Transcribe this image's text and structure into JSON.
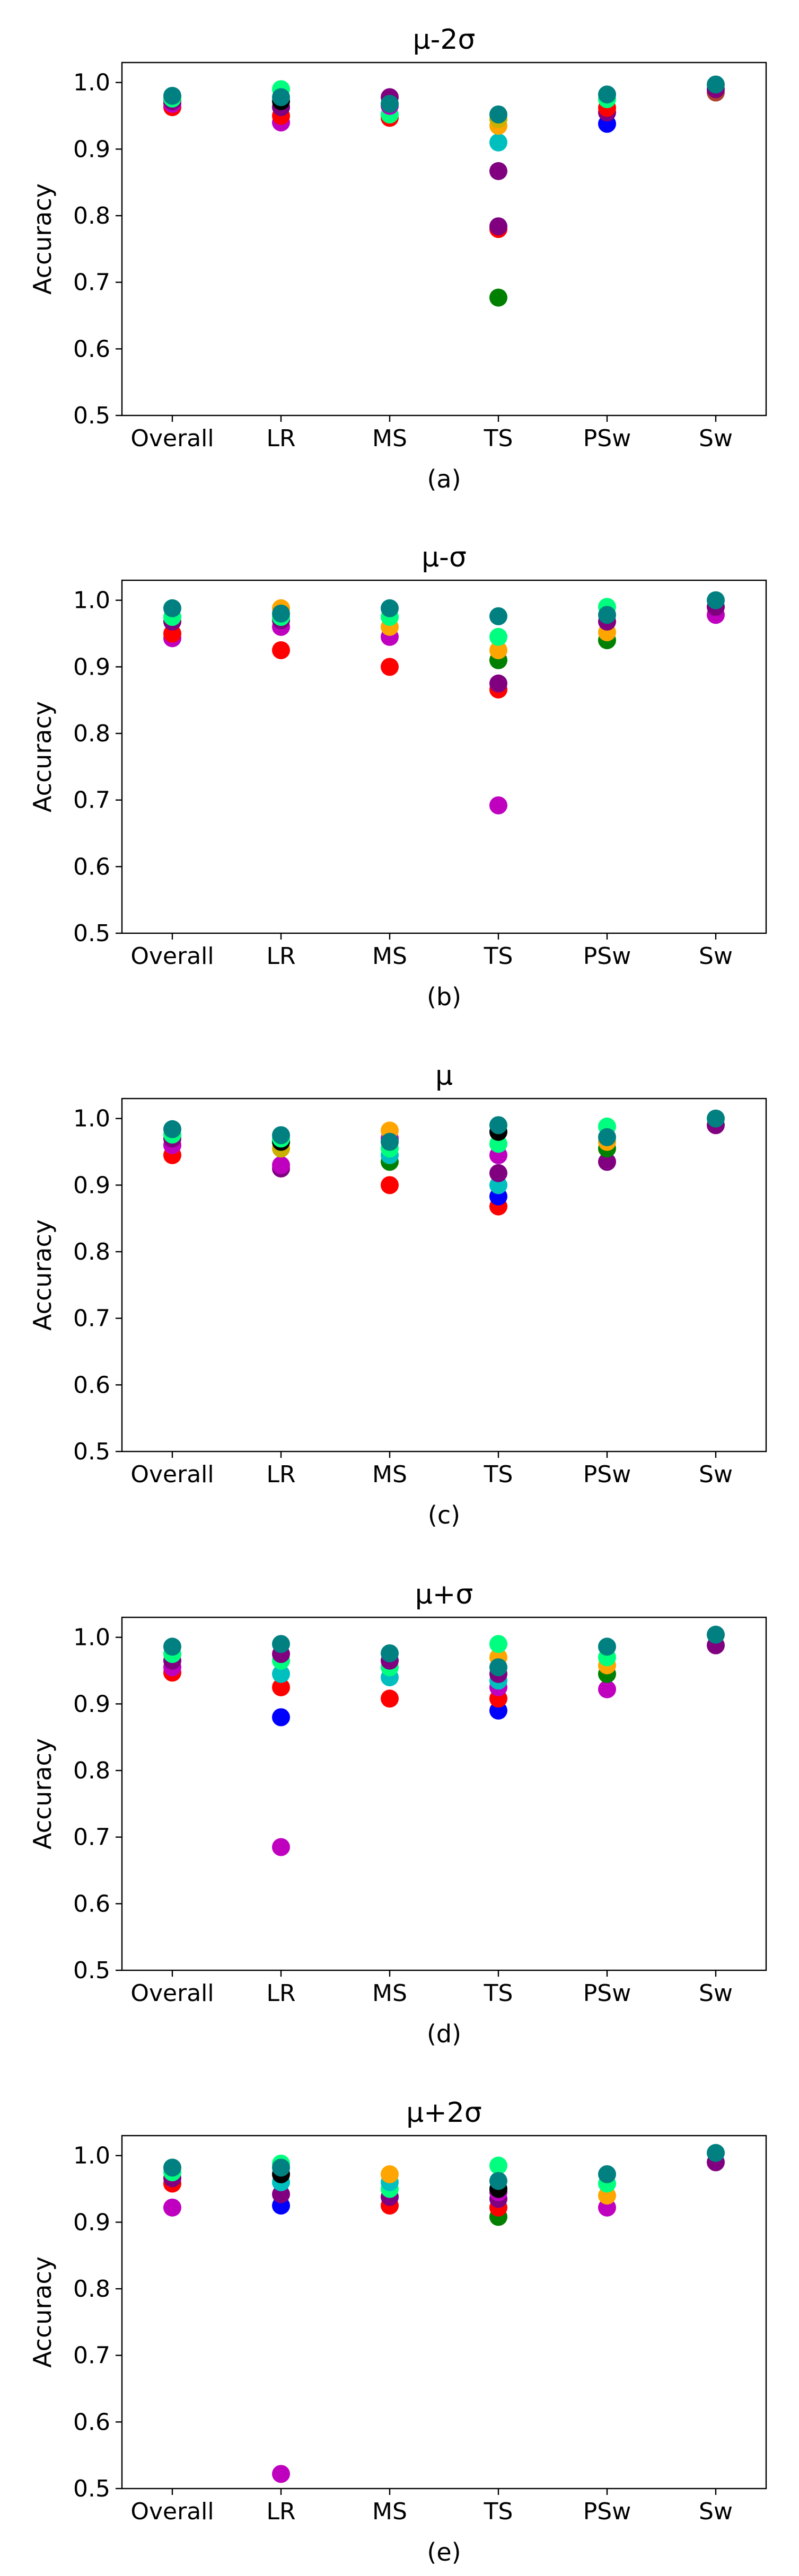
{
  "figure": {
    "colors": {
      "red": "#ff0000",
      "green": "#008000",
      "blue": "#0000ff",
      "cyan": "#00bfbf",
      "magenta": "#bf00bf",
      "purple": "#800080",
      "orange": "#ffa500",
      "gold": "#ccb000",
      "spring": "#00ff7f",
      "black": "#000000",
      "teal": "#008080",
      "brown": "#b04030"
    }
  },
  "chart_data": [
    {
      "type": "scatter",
      "title": "μ-2σ",
      "caption": "(a)",
      "xlabel": "",
      "ylabel": "Accuracy",
      "categories": [
        "Overall",
        "LR",
        "MS",
        "TS",
        "PSw",
        "Sw"
      ],
      "ylim": [
        0.5,
        1.03
      ],
      "yticks": [
        "0.5",
        "0.6",
        "0.7",
        "0.8",
        "0.9",
        "1.0"
      ],
      "grid": false,
      "points": [
        {
          "category": "Overall",
          "y": 0.963,
          "color": "red"
        },
        {
          "category": "Overall",
          "y": 0.968,
          "color": "magenta"
        },
        {
          "category": "Overall",
          "y": 0.972,
          "color": "purple"
        },
        {
          "category": "Overall",
          "y": 0.976,
          "color": "spring"
        },
        {
          "category": "Overall",
          "y": 0.98,
          "color": "teal"
        },
        {
          "category": "LR",
          "y": 0.94,
          "color": "magenta"
        },
        {
          "category": "LR",
          "y": 0.95,
          "color": "red"
        },
        {
          "category": "LR",
          "y": 0.963,
          "color": "purple"
        },
        {
          "category": "LR",
          "y": 0.972,
          "color": "black"
        },
        {
          "category": "LR",
          "y": 0.99,
          "color": "spring"
        },
        {
          "category": "LR",
          "y": 0.978,
          "color": "teal"
        },
        {
          "category": "MS",
          "y": 0.947,
          "color": "red"
        },
        {
          "category": "MS",
          "y": 0.952,
          "color": "spring"
        },
        {
          "category": "MS",
          "y": 0.965,
          "color": "magenta"
        },
        {
          "category": "MS",
          "y": 0.978,
          "color": "purple"
        },
        {
          "category": "MS",
          "y": 0.968,
          "color": "teal"
        },
        {
          "category": "TS",
          "y": 0.677,
          "color": "green"
        },
        {
          "category": "TS",
          "y": 0.78,
          "color": "red"
        },
        {
          "category": "TS",
          "y": 0.784,
          "color": "purple"
        },
        {
          "category": "TS",
          "y": 0.867,
          "color": "purple"
        },
        {
          "category": "TS",
          "y": 0.91,
          "color": "cyan"
        },
        {
          "category": "TS",
          "y": 0.935,
          "color": "orange"
        },
        {
          "category": "TS",
          "y": 0.945,
          "color": "gold"
        },
        {
          "category": "TS",
          "y": 0.952,
          "color": "teal"
        },
        {
          "category": "PSw",
          "y": 0.938,
          "color": "blue"
        },
        {
          "category": "PSw",
          "y": 0.955,
          "color": "purple"
        },
        {
          "category": "PSw",
          "y": 0.962,
          "color": "red"
        },
        {
          "category": "PSw",
          "y": 0.975,
          "color": "spring"
        },
        {
          "category": "PSw",
          "y": 0.982,
          "color": "teal"
        },
        {
          "category": "Sw",
          "y": 0.985,
          "color": "brown"
        },
        {
          "category": "Sw",
          "y": 0.99,
          "color": "purple"
        },
        {
          "category": "Sw",
          "y": 0.997,
          "color": "teal"
        }
      ]
    },
    {
      "type": "scatter",
      "title": "μ-σ",
      "caption": "(b)",
      "xlabel": "",
      "ylabel": "Accuracy",
      "categories": [
        "Overall",
        "LR",
        "MS",
        "TS",
        "PSw",
        "Sw"
      ],
      "ylim": [
        0.5,
        1.03
      ],
      "yticks": [
        "0.5",
        "0.6",
        "0.7",
        "0.8",
        "0.9",
        "1.0"
      ],
      "grid": false,
      "points": [
        {
          "category": "Overall",
          "y": 0.943,
          "color": "magenta"
        },
        {
          "category": "Overall",
          "y": 0.95,
          "color": "red"
        },
        {
          "category": "Overall",
          "y": 0.968,
          "color": "purple"
        },
        {
          "category": "Overall",
          "y": 0.975,
          "color": "spring"
        },
        {
          "category": "Overall",
          "y": 0.988,
          "color": "teal"
        },
        {
          "category": "LR",
          "y": 0.925,
          "color": "red"
        },
        {
          "category": "LR",
          "y": 0.96,
          "color": "magenta"
        },
        {
          "category": "LR",
          "y": 0.97,
          "color": "purple"
        },
        {
          "category": "LR",
          "y": 0.988,
          "color": "orange"
        },
        {
          "category": "LR",
          "y": 0.975,
          "color": "spring"
        },
        {
          "category": "LR",
          "y": 0.98,
          "color": "teal"
        },
        {
          "category": "MS",
          "y": 0.9,
          "color": "red"
        },
        {
          "category": "MS",
          "y": 0.945,
          "color": "magenta"
        },
        {
          "category": "MS",
          "y": 0.96,
          "color": "orange"
        },
        {
          "category": "MS",
          "y": 0.975,
          "color": "spring"
        },
        {
          "category": "MS",
          "y": 0.988,
          "color": "teal"
        },
        {
          "category": "TS",
          "y": 0.692,
          "color": "magenta"
        },
        {
          "category": "TS",
          "y": 0.866,
          "color": "red"
        },
        {
          "category": "TS",
          "y": 0.875,
          "color": "purple"
        },
        {
          "category": "TS",
          "y": 0.91,
          "color": "green"
        },
        {
          "category": "TS",
          "y": 0.925,
          "color": "orange"
        },
        {
          "category": "TS",
          "y": 0.945,
          "color": "spring"
        },
        {
          "category": "TS",
          "y": 0.976,
          "color": "teal"
        },
        {
          "category": "PSw",
          "y": 0.94,
          "color": "green"
        },
        {
          "category": "PSw",
          "y": 0.952,
          "color": "orange"
        },
        {
          "category": "PSw",
          "y": 0.968,
          "color": "purple"
        },
        {
          "category": "PSw",
          "y": 0.99,
          "color": "spring"
        },
        {
          "category": "PSw",
          "y": 0.978,
          "color": "teal"
        },
        {
          "category": "Sw",
          "y": 0.978,
          "color": "magenta"
        },
        {
          "category": "Sw",
          "y": 0.99,
          "color": "purple"
        },
        {
          "category": "Sw",
          "y": 1.0,
          "color": "teal"
        }
      ]
    },
    {
      "type": "scatter",
      "title": "μ",
      "caption": "(c)",
      "xlabel": "",
      "ylabel": "Accuracy",
      "categories": [
        "Overall",
        "LR",
        "MS",
        "TS",
        "PSw",
        "Sw"
      ],
      "ylim": [
        0.5,
        1.03
      ],
      "yticks": [
        "0.5",
        "0.6",
        "0.7",
        "0.8",
        "0.9",
        "1.0"
      ],
      "grid": false,
      "points": [
        {
          "category": "Overall",
          "y": 0.945,
          "color": "red"
        },
        {
          "category": "Overall",
          "y": 0.96,
          "color": "magenta"
        },
        {
          "category": "Overall",
          "y": 0.97,
          "color": "purple"
        },
        {
          "category": "Overall",
          "y": 0.976,
          "color": "spring"
        },
        {
          "category": "Overall",
          "y": 0.984,
          "color": "teal"
        },
        {
          "category": "LR",
          "y": 0.925,
          "color": "purple"
        },
        {
          "category": "LR",
          "y": 0.93,
          "color": "magenta"
        },
        {
          "category": "LR",
          "y": 0.955,
          "color": "gold"
        },
        {
          "category": "LR",
          "y": 0.965,
          "color": "black"
        },
        {
          "category": "LR",
          "y": 0.97,
          "color": "spring"
        },
        {
          "category": "LR",
          "y": 0.975,
          "color": "teal"
        },
        {
          "category": "MS",
          "y": 0.9,
          "color": "red"
        },
        {
          "category": "MS",
          "y": 0.935,
          "color": "green"
        },
        {
          "category": "MS",
          "y": 0.945,
          "color": "cyan"
        },
        {
          "category": "MS",
          "y": 0.955,
          "color": "spring"
        },
        {
          "category": "MS",
          "y": 0.97,
          "color": "magenta"
        },
        {
          "category": "MS",
          "y": 0.982,
          "color": "orange"
        },
        {
          "category": "MS",
          "y": 0.965,
          "color": "teal"
        },
        {
          "category": "TS",
          "y": 0.868,
          "color": "red"
        },
        {
          "category": "TS",
          "y": 0.883,
          "color": "blue"
        },
        {
          "category": "TS",
          "y": 0.9,
          "color": "cyan"
        },
        {
          "category": "TS",
          "y": 0.918,
          "color": "purple"
        },
        {
          "category": "TS",
          "y": 0.945,
          "color": "magenta"
        },
        {
          "category": "TS",
          "y": 0.962,
          "color": "spring"
        },
        {
          "category": "TS",
          "y": 0.98,
          "color": "black"
        },
        {
          "category": "TS",
          "y": 0.99,
          "color": "teal"
        },
        {
          "category": "PSw",
          "y": 0.935,
          "color": "purple"
        },
        {
          "category": "PSw",
          "y": 0.955,
          "color": "green"
        },
        {
          "category": "PSw",
          "y": 0.965,
          "color": "orange"
        },
        {
          "category": "PSw",
          "y": 0.988,
          "color": "spring"
        },
        {
          "category": "PSw",
          "y": 0.972,
          "color": "teal"
        },
        {
          "category": "Sw",
          "y": 0.99,
          "color": "purple"
        },
        {
          "category": "Sw",
          "y": 1.0,
          "color": "teal"
        }
      ]
    },
    {
      "type": "scatter",
      "title": "μ+σ",
      "caption": "(d)",
      "xlabel": "",
      "ylabel": "Accuracy",
      "categories": [
        "Overall",
        "LR",
        "MS",
        "TS",
        "PSw",
        "Sw"
      ],
      "ylim": [
        0.5,
        1.03
      ],
      "yticks": [
        "0.5",
        "0.6",
        "0.7",
        "0.8",
        "0.9",
        "1.0"
      ],
      "grid": false,
      "points": [
        {
          "category": "Overall",
          "y": 0.947,
          "color": "red"
        },
        {
          "category": "Overall",
          "y": 0.955,
          "color": "magenta"
        },
        {
          "category": "Overall",
          "y": 0.965,
          "color": "purple"
        },
        {
          "category": "Overall",
          "y": 0.975,
          "color": "spring"
        },
        {
          "category": "Overall",
          "y": 0.986,
          "color": "teal"
        },
        {
          "category": "LR",
          "y": 0.685,
          "color": "magenta"
        },
        {
          "category": "LR",
          "y": 0.88,
          "color": "blue"
        },
        {
          "category": "LR",
          "y": 0.925,
          "color": "red"
        },
        {
          "category": "LR",
          "y": 0.945,
          "color": "cyan"
        },
        {
          "category": "LR",
          "y": 0.965,
          "color": "spring"
        },
        {
          "category": "LR",
          "y": 0.975,
          "color": "purple"
        },
        {
          "category": "LR",
          "y": 0.99,
          "color": "teal"
        },
        {
          "category": "MS",
          "y": 0.908,
          "color": "red"
        },
        {
          "category": "MS",
          "y": 0.94,
          "color": "cyan"
        },
        {
          "category": "MS",
          "y": 0.955,
          "color": "spring"
        },
        {
          "category": "MS",
          "y": 0.965,
          "color": "purple"
        },
        {
          "category": "MS",
          "y": 0.976,
          "color": "teal"
        },
        {
          "category": "TS",
          "y": 0.89,
          "color": "blue"
        },
        {
          "category": "TS",
          "y": 0.908,
          "color": "red"
        },
        {
          "category": "TS",
          "y": 0.925,
          "color": "magenta"
        },
        {
          "category": "TS",
          "y": 0.935,
          "color": "cyan"
        },
        {
          "category": "TS",
          "y": 0.945,
          "color": "purple"
        },
        {
          "category": "TS",
          "y": 0.97,
          "color": "orange"
        },
        {
          "category": "TS",
          "y": 0.99,
          "color": "spring"
        },
        {
          "category": "TS",
          "y": 0.955,
          "color": "teal"
        },
        {
          "category": "PSw",
          "y": 0.922,
          "color": "magenta"
        },
        {
          "category": "PSw",
          "y": 0.945,
          "color": "green"
        },
        {
          "category": "PSw",
          "y": 0.958,
          "color": "orange"
        },
        {
          "category": "PSw",
          "y": 0.97,
          "color": "spring"
        },
        {
          "category": "PSw",
          "y": 0.986,
          "color": "teal"
        },
        {
          "category": "Sw",
          "y": 0.988,
          "color": "purple"
        },
        {
          "category": "Sw",
          "y": 1.004,
          "color": "teal"
        }
      ]
    },
    {
      "type": "scatter",
      "title": "μ+2σ",
      "caption": "(e)",
      "xlabel": "",
      "ylabel": "Accuracy",
      "categories": [
        "Overall",
        "LR",
        "MS",
        "TS",
        "PSw",
        "Sw"
      ],
      "ylim": [
        0.5,
        1.03
      ],
      "yticks": [
        "0.5",
        "0.6",
        "0.7",
        "0.8",
        "0.9",
        "1.0"
      ],
      "grid": false,
      "points": [
        {
          "category": "Overall",
          "y": 0.922,
          "color": "magenta"
        },
        {
          "category": "Overall",
          "y": 0.958,
          "color": "red"
        },
        {
          "category": "Overall",
          "y": 0.966,
          "color": "purple"
        },
        {
          "category": "Overall",
          "y": 0.975,
          "color": "spring"
        },
        {
          "category": "Overall",
          "y": 0.982,
          "color": "teal"
        },
        {
          "category": "LR",
          "y": 0.522,
          "color": "magenta"
        },
        {
          "category": "LR",
          "y": 0.925,
          "color": "blue"
        },
        {
          "category": "LR",
          "y": 0.942,
          "color": "purple"
        },
        {
          "category": "LR",
          "y": 0.96,
          "color": "cyan"
        },
        {
          "category": "LR",
          "y": 0.972,
          "color": "black"
        },
        {
          "category": "LR",
          "y": 0.988,
          "color": "spring"
        },
        {
          "category": "LR",
          "y": 0.982,
          "color": "teal"
        },
        {
          "category": "MS",
          "y": 0.925,
          "color": "red"
        },
        {
          "category": "MS",
          "y": 0.938,
          "color": "purple"
        },
        {
          "category": "MS",
          "y": 0.95,
          "color": "spring"
        },
        {
          "category": "MS",
          "y": 0.96,
          "color": "cyan"
        },
        {
          "category": "MS",
          "y": 0.972,
          "color": "orange"
        },
        {
          "category": "TS",
          "y": 0.908,
          "color": "green"
        },
        {
          "category": "TS",
          "y": 0.922,
          "color": "red"
        },
        {
          "category": "TS",
          "y": 0.935,
          "color": "purple"
        },
        {
          "category": "TS",
          "y": 0.945,
          "color": "magenta"
        },
        {
          "category": "TS",
          "y": 0.95,
          "color": "black"
        },
        {
          "category": "TS",
          "y": 0.985,
          "color": "spring"
        },
        {
          "category": "TS",
          "y": 0.962,
          "color": "teal"
        },
        {
          "category": "PSw",
          "y": 0.922,
          "color": "magenta"
        },
        {
          "category": "PSw",
          "y": 0.94,
          "color": "orange"
        },
        {
          "category": "PSw",
          "y": 0.958,
          "color": "spring"
        },
        {
          "category": "PSw",
          "y": 0.972,
          "color": "teal"
        },
        {
          "category": "Sw",
          "y": 0.99,
          "color": "purple"
        },
        {
          "category": "Sw",
          "y": 1.004,
          "color": "teal"
        }
      ]
    }
  ]
}
